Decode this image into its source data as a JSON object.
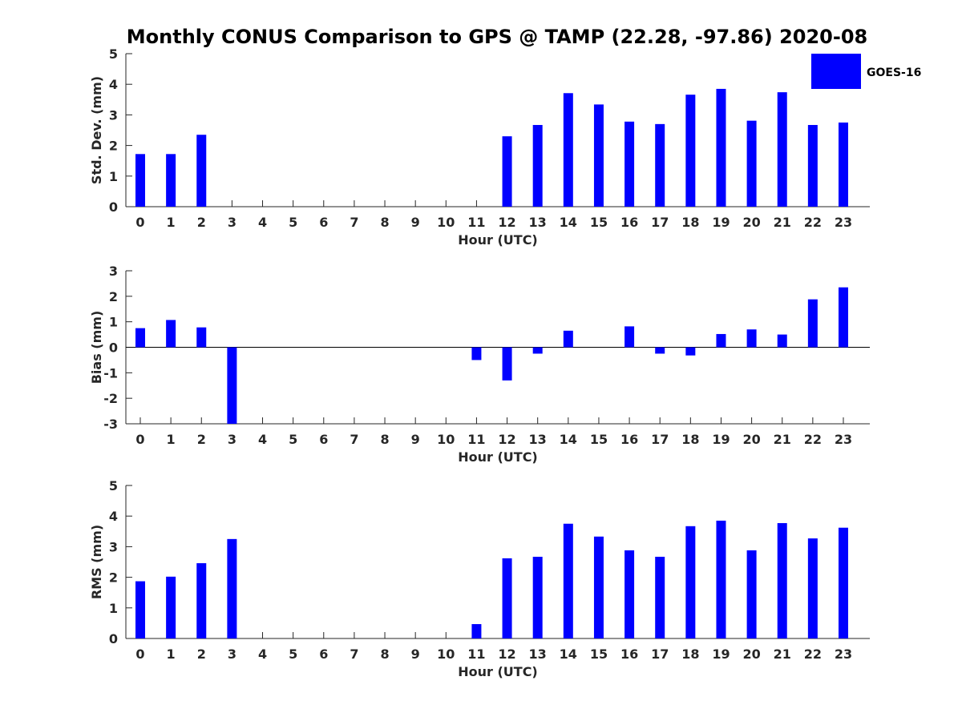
{
  "title": "Monthly CONUS Comparison to GPS @ TAMP (22.28, -97.86) 2020-08",
  "legend": {
    "label": "GOES-16",
    "position": "top-right"
  },
  "colors": {
    "bar": "#0000ff",
    "axis": "#262626",
    "background": "#ffffff"
  },
  "chart_data": [
    {
      "type": "bar",
      "ylabel": "Std. Dev. (mm)",
      "xlabel": "Hour (UTC)",
      "ylim": [
        0,
        5
      ],
      "yticks": [
        0,
        1,
        2,
        3,
        4,
        5
      ],
      "categories": [
        "0",
        "1",
        "2",
        "3",
        "4",
        "5",
        "6",
        "7",
        "8",
        "9",
        "10",
        "11",
        "12",
        "13",
        "14",
        "15",
        "16",
        "17",
        "18",
        "19",
        "20",
        "21",
        "22",
        "23"
      ],
      "series": [
        {
          "name": "GOES-16",
          "values": [
            1.72,
            1.72,
            2.35,
            null,
            null,
            null,
            null,
            null,
            null,
            null,
            null,
            null,
            2.3,
            2.67,
            3.71,
            3.34,
            2.78,
            2.7,
            3.66,
            3.85,
            2.81,
            3.74,
            2.67,
            2.75
          ]
        }
      ],
      "grid": false
    },
    {
      "type": "bar",
      "ylabel": "Bias (mm)",
      "xlabel": "Hour (UTC)",
      "ylim": [
        -3,
        3
      ],
      "yticks": [
        -3,
        -2,
        -1,
        0,
        1,
        2,
        3
      ],
      "categories": [
        "0",
        "1",
        "2",
        "3",
        "4",
        "5",
        "6",
        "7",
        "8",
        "9",
        "10",
        "11",
        "12",
        "13",
        "14",
        "15",
        "16",
        "17",
        "18",
        "19",
        "20",
        "21",
        "22",
        "23"
      ],
      "series": [
        {
          "name": "GOES-16",
          "values": [
            0.75,
            1.07,
            0.78,
            -3.2,
            null,
            null,
            null,
            null,
            null,
            null,
            null,
            -0.5,
            -1.3,
            -0.25,
            0.65,
            null,
            0.82,
            -0.25,
            -0.32,
            0.52,
            0.7,
            0.5,
            1.88,
            2.35
          ]
        }
      ],
      "grid": false,
      "zero_line": true
    },
    {
      "type": "bar",
      "ylabel": "RMS (mm)",
      "xlabel": "Hour (UTC)",
      "ylim": [
        0,
        5
      ],
      "yticks": [
        0,
        1,
        2,
        3,
        4,
        5
      ],
      "categories": [
        "0",
        "1",
        "2",
        "3",
        "4",
        "5",
        "6",
        "7",
        "8",
        "9",
        "10",
        "11",
        "12",
        "13",
        "14",
        "15",
        "16",
        "17",
        "18",
        "19",
        "20",
        "21",
        "22",
        "23"
      ],
      "series": [
        {
          "name": "GOES-16",
          "values": [
            1.87,
            2.02,
            2.46,
            3.25,
            null,
            null,
            null,
            null,
            null,
            null,
            null,
            0.47,
            2.62,
            2.67,
            3.75,
            3.33,
            2.88,
            2.67,
            3.67,
            3.85,
            2.88,
            3.77,
            3.27,
            3.62
          ]
        }
      ],
      "grid": false
    }
  ]
}
